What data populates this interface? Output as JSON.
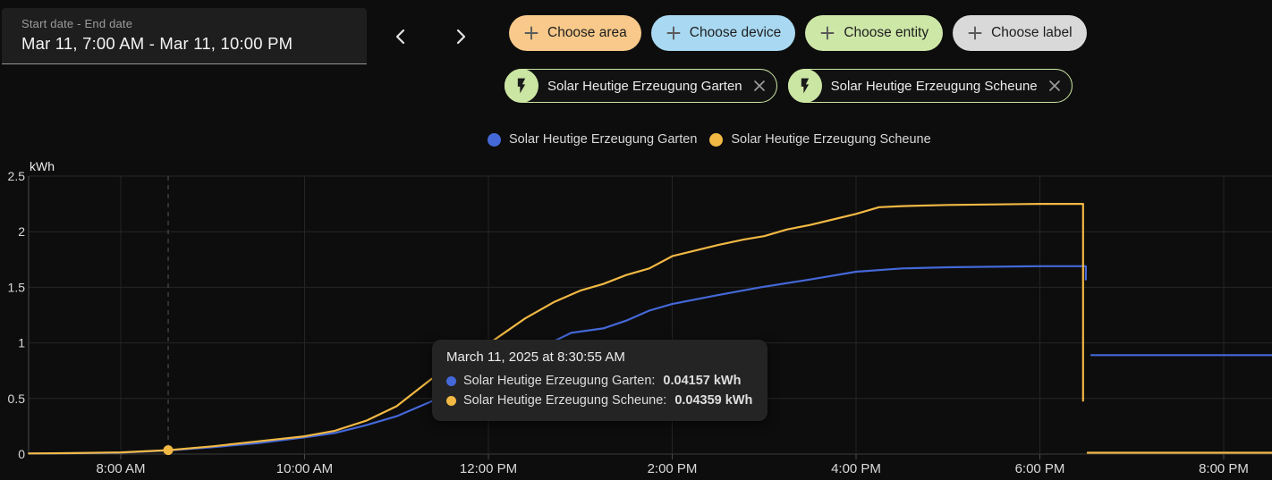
{
  "date_picker": {
    "label": "Start date - End date",
    "value": "Mar 11, 7:00 AM - Mar 11, 10:00 PM"
  },
  "filter_chips": [
    {
      "label": "Choose area",
      "bg": "#f8c98a"
    },
    {
      "label": "Choose device",
      "bg": "#a9d9f2"
    },
    {
      "label": "Choose entity",
      "bg": "#cde7a7"
    },
    {
      "label": "Choose label",
      "bg": "#d9d9d9"
    }
  ],
  "entity_chips": [
    {
      "label": "Solar Heutige Erzeugung Garten"
    },
    {
      "label": "Solar Heutige Erzeugung Scheune"
    }
  ],
  "legend": [
    {
      "label": "Solar Heutige Erzeugung Garten",
      "color": "#4468d8"
    },
    {
      "label": "Solar Heutige Erzeugung Scheune",
      "color": "#f1b844"
    }
  ],
  "tooltip": {
    "title": "March 11, 2025 at 8:30:55 AM",
    "rows": [
      {
        "label": "Solar Heutige Erzeugung Garten:",
        "value": "0.04157 kWh",
        "color": "#4468d8"
      },
      {
        "label": "Solar Heutige Erzeugung Scheune:",
        "value": "0.04359 kWh",
        "color": "#f1b844"
      }
    ]
  },
  "chart_data": {
    "type": "line",
    "title": "",
    "xlabel": "",
    "ylabel": "kWh",
    "unit": "kWh",
    "ylim": [
      0,
      2.5
    ],
    "y_ticks": [
      0,
      0.5,
      1,
      1.5,
      2,
      2.5
    ],
    "x_ticks": [
      {
        "t": 8,
        "label": "8:00 AM"
      },
      {
        "t": 10,
        "label": "10:00 AM"
      },
      {
        "t": 12,
        "label": "12:00 PM"
      },
      {
        "t": 14,
        "label": "2:00 PM"
      },
      {
        "t": 16,
        "label": "4:00 PM"
      },
      {
        "t": 18,
        "label": "6:00 PM"
      },
      {
        "t": 20,
        "label": "8:00 PM"
      }
    ],
    "x_range_hours": [
      7,
      20.55
    ],
    "grid": true,
    "legend_position": "top-center",
    "hover": {
      "t": 8.516,
      "value": 0.035,
      "time": "8:30:55 AM"
    },
    "series": [
      {
        "name": "Solar Heutige Erzeugung Garten",
        "color": "#4468d8",
        "segments": [
          [
            [
              7,
              0.005
            ],
            [
              7.5,
              0.008
            ],
            [
              8,
              0.013
            ],
            [
              8.52,
              0.033
            ],
            [
              9,
              0.062
            ],
            [
              9.5,
              0.1
            ],
            [
              10,
              0.15
            ],
            [
              10.33,
              0.19
            ],
            [
              10.67,
              0.26
            ],
            [
              11,
              0.34
            ],
            [
              11.37,
              0.47
            ],
            [
              11.75,
              0.62
            ],
            [
              12,
              0.72
            ],
            [
              12.5,
              0.93
            ],
            [
              12.9,
              1.09
            ],
            [
              13.25,
              1.13
            ],
            [
              13.5,
              1.2
            ],
            [
              13.75,
              1.29
            ],
            [
              14,
              1.35
            ],
            [
              14.25,
              1.39
            ],
            [
              14.5,
              1.43
            ],
            [
              14.96,
              1.5
            ],
            [
              15.5,
              1.57
            ],
            [
              16,
              1.64
            ],
            [
              16.5,
              1.67
            ],
            [
              17,
              1.68
            ],
            [
              17.5,
              1.685
            ],
            [
              18,
              1.69
            ],
            [
              18.5,
              1.69
            ],
            [
              18.5,
              1.57
            ]
          ],
          [
            [
              18.56,
              0.89
            ],
            [
              20.6,
              0.89
            ]
          ]
        ]
      },
      {
        "name": "Solar Heutige Erzeugung Scheune",
        "color": "#f1b844",
        "segments": [
          [
            [
              7,
              0.006
            ],
            [
              7.5,
              0.009
            ],
            [
              8,
              0.015
            ],
            [
              8.52,
              0.035
            ],
            [
              9,
              0.07
            ],
            [
              9.5,
              0.115
            ],
            [
              10,
              0.16
            ],
            [
              10.33,
              0.21
            ],
            [
              10.67,
              0.3
            ],
            [
              11,
              0.43
            ],
            [
              11.37,
              0.67
            ],
            [
              11.6,
              0.78
            ],
            [
              12,
              0.99
            ],
            [
              12.4,
              1.22
            ],
            [
              12.72,
              1.37
            ],
            [
              13,
              1.47
            ],
            [
              13.25,
              1.53
            ],
            [
              13.5,
              1.61
            ],
            [
              13.75,
              1.67
            ],
            [
              14,
              1.78
            ],
            [
              14.25,
              1.83
            ],
            [
              14.5,
              1.88
            ],
            [
              14.78,
              1.93
            ],
            [
              15,
              1.96
            ],
            [
              15.25,
              2.02
            ],
            [
              15.5,
              2.06
            ],
            [
              15.75,
              2.11
            ],
            [
              16,
              2.16
            ],
            [
              16.25,
              2.22
            ],
            [
              16.5,
              2.23
            ],
            [
              17,
              2.24
            ],
            [
              18,
              2.25
            ],
            [
              18.47,
              2.25
            ],
            [
              18.47,
              0.48
            ]
          ],
          [
            [
              18.52,
              0.012
            ],
            [
              20.6,
              0.012
            ]
          ]
        ]
      }
    ]
  }
}
